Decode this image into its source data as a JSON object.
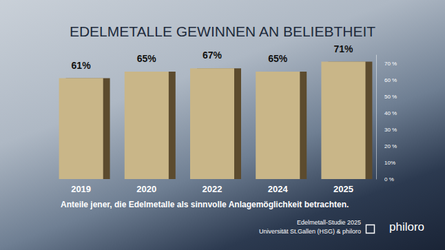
{
  "chart_data": {
    "type": "bar",
    "title": "EDELMETALLE GEWINNEN AN BELIEBTHEIT",
    "categories": [
      "2019",
      "2020",
      "2022",
      "2024",
      "2025"
    ],
    "values": [
      61,
      65,
      67,
      65,
      71
    ],
    "value_labels": [
      "61%",
      "65%",
      "67%",
      "65%",
      "71%"
    ],
    "data_labels": true,
    "color": "#c9b688",
    "ylim": [
      0,
      75
    ],
    "yticks": [
      {
        "value": 0,
        "label": "0 %"
      },
      {
        "value": 10,
        "label": "10%"
      },
      {
        "value": 20,
        "label": "20 %"
      },
      {
        "value": 30,
        "label": "30 %"
      },
      {
        "value": 40,
        "label": "40 %"
      },
      {
        "value": 50,
        "label": "50 %"
      },
      {
        "value": 60,
        "label": "60 %"
      },
      {
        "value": 70,
        "label": "70 %"
      }
    ],
    "grid": false,
    "annotations": [
      "Anteile jener, die Edelmetalle als sinnvolle Anlagemöglichkeit betrachten.",
      "Edelmetall-Studie 2025",
      "Universität St.Gallen (HSG) & philoro",
      "philoro"
    ]
  }
}
